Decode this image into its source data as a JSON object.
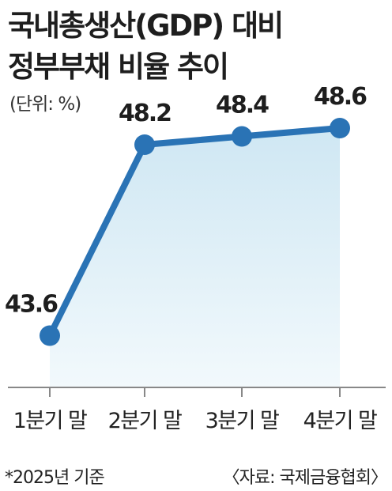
{
  "header": {
    "title_line1": "국내총생산(GDP) 대비",
    "title_line2": "정부부채 비율 추이",
    "unit": "(단위: %)"
  },
  "chart_data": {
    "type": "line",
    "title": "국내총생산(GDP) 대비 정부부채 비율 추이",
    "unit": "%",
    "categories": [
      "1분기 말",
      "2분기 말",
      "3분기 말",
      "4분기 말"
    ],
    "series": [
      {
        "values": [
          43.6,
          48.2,
          48.4,
          48.6
        ]
      }
    ],
    "data_labels": [
      "43.6",
      "48.2",
      "48.4",
      "48.6"
    ],
    "ylim": [
      42.2,
      49.4
    ],
    "grid": false,
    "fill_under_line": true
  },
  "colors": {
    "line": "#2a73b5",
    "marker": "#2a73b5",
    "fill_top": "#cfe7f3",
    "fill_bottom": "#f2f9fc",
    "axis": "#888888"
  },
  "footer": {
    "note": "*2025년 기준",
    "source": "〈자료: 국제금융협회〉"
  }
}
